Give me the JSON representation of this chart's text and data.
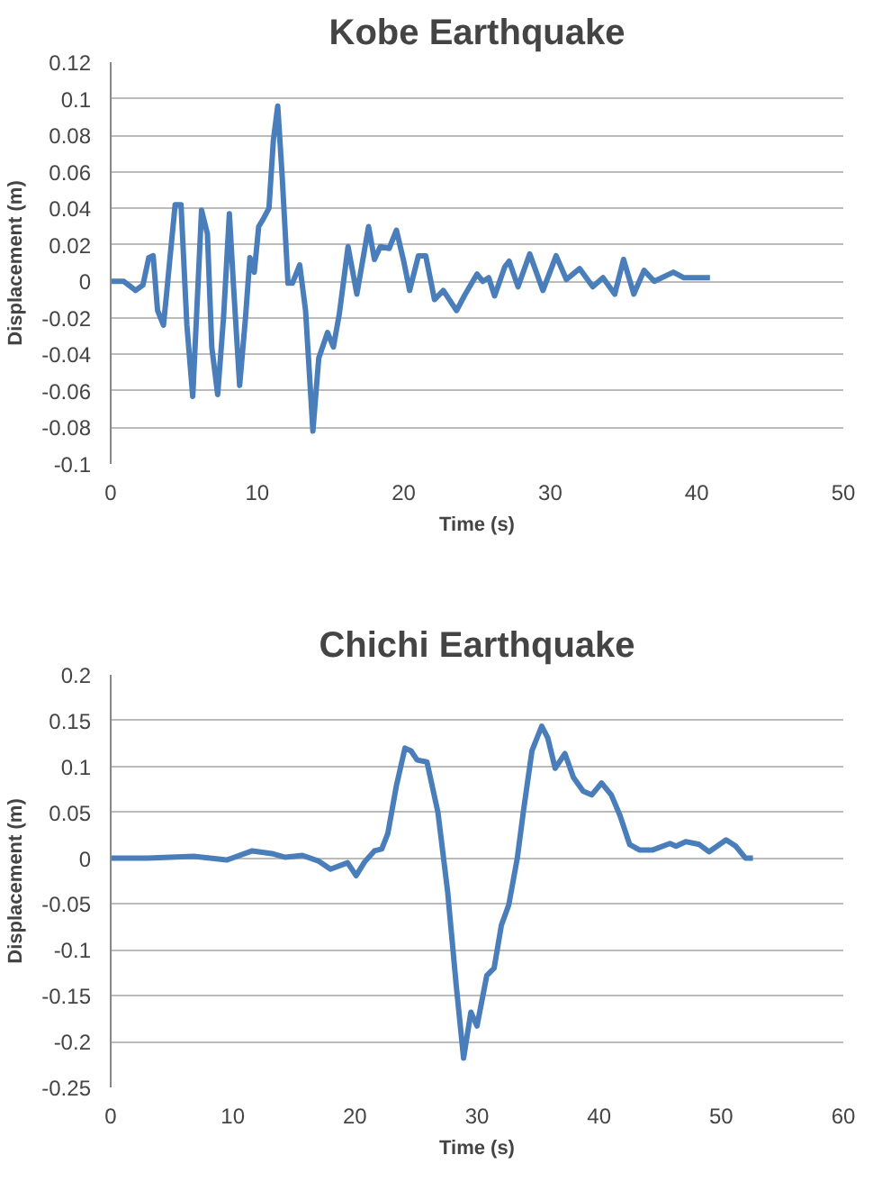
{
  "chart_data": [
    {
      "type": "line",
      "title": "Kobe Earthquake",
      "xlabel": "Time (s)",
      "ylabel": "Displacement (m)",
      "xlim": [
        0,
        50
      ],
      "xticks": [
        0,
        10,
        20,
        30,
        40,
        50
      ],
      "ylim": [
        -0.1,
        0.12
      ],
      "yticks": [
        -0.1,
        -0.08,
        -0.06,
        -0.04,
        -0.02,
        0,
        0.02,
        0.04,
        0.06,
        0.08,
        0.1,
        0.12
      ],
      "grid": "y",
      "marker": "none",
      "line_style": "solid",
      "series": [
        {
          "color": "#4a7ebb",
          "x": [
            0,
            0.9,
            1.7,
            2.2,
            2.6,
            2.9,
            3.2,
            3.6,
            3.8,
            4.0,
            4.4,
            4.8,
            5.2,
            5.6,
            5.9,
            6.2,
            6.6,
            6.9,
            7.3,
            7.7,
            8.1,
            8.4,
            8.8,
            9.2,
            9.5,
            9.8,
            10.1,
            10.4,
            10.8,
            11.1,
            11.4,
            11.7,
            12.1,
            12.4,
            12.9,
            13.3,
            13.8,
            14.2,
            14.8,
            15.2,
            15.6,
            16.2,
            16.8,
            17.6,
            18.0,
            18.4,
            19.0,
            19.5,
            20.0,
            20.4,
            21.0,
            21.5,
            22.1,
            22.7,
            23.6,
            24.2,
            25.0,
            25.4,
            25.8,
            26.2,
            26.9,
            27.2,
            27.8,
            28.6,
            29.5,
            30.4,
            31.1,
            32.0,
            32.9,
            33.6,
            34.4,
            35.0,
            35.7,
            36.4,
            37.1,
            38.4,
            39.1,
            39.6,
            40.9
          ],
          "values": [
            0,
            0,
            -0.005,
            -0.002,
            0.013,
            0.014,
            -0.016,
            -0.024,
            -0.008,
            0.009,
            0.042,
            0.042,
            -0.024,
            -0.063,
            -0.012,
            0.039,
            0.026,
            -0.036,
            -0.062,
            -0.02,
            0.037,
            -0.005,
            -0.057,
            -0.02,
            0.013,
            0.005,
            0.03,
            0.034,
            0.04,
            0.077,
            0.096,
            0.058,
            -0.001,
            -0.001,
            0.009,
            -0.016,
            -0.082,
            -0.042,
            -0.028,
            -0.036,
            -0.018,
            0.019,
            -0.007,
            0.03,
            0.012,
            0.019,
            0.018,
            0.028,
            0.011,
            -0.005,
            0.014,
            0.014,
            -0.01,
            -0.005,
            -0.016,
            -0.007,
            0.004,
            0,
            0.002,
            -0.008,
            0.008,
            0.011,
            -0.003,
            0.015,
            -0.005,
            0.014,
            0.001,
            0.007,
            -0.003,
            0.002,
            -0.007,
            0.012,
            -0.007,
            0.006,
            0,
            0.005,
            0.002,
            0.002,
            0.002
          ]
        }
      ]
    },
    {
      "type": "line",
      "title": "Chichi Earthquake",
      "xlabel": "Time (s)",
      "ylabel": "Displacement (m)",
      "xlim": [
        0,
        60
      ],
      "xticks": [
        0,
        10,
        20,
        30,
        40,
        50,
        60
      ],
      "ylim": [
        -0.25,
        0.2
      ],
      "yticks": [
        -0.25,
        -0.2,
        -0.15,
        -0.1,
        -0.05,
        0,
        0.05,
        0.1,
        0.15,
        0.2
      ],
      "grid": "y",
      "marker": "none",
      "line_style": "solid",
      "series": [
        {
          "color": "#4a7ebb",
          "x": [
            0,
            3.0,
            6.8,
            9.5,
            11.6,
            13.2,
            14.3,
            15.7,
            17.0,
            18.0,
            19.4,
            20.1,
            20.8,
            21.6,
            22.2,
            22.7,
            23.4,
            24.1,
            24.6,
            25.1,
            25.9,
            26.8,
            27.6,
            28.3,
            28.9,
            29.5,
            30.0,
            30.8,
            31.4,
            32.0,
            32.6,
            33.3,
            33.8,
            34.5,
            35.3,
            35.8,
            36.4,
            37.2,
            37.9,
            38.7,
            39.4,
            40.2,
            41.0,
            41.7,
            42.5,
            43.3,
            44.4,
            45.8,
            46.3,
            47.1,
            48.2,
            49.0,
            50.4,
            51.2,
            52.0,
            52.6
          ],
          "values": [
            0,
            0,
            0.002,
            -0.002,
            0.008,
            0.005,
            0.001,
            0.003,
            -0.003,
            -0.012,
            -0.005,
            -0.019,
            -0.004,
            0.008,
            0.01,
            0.027,
            0.079,
            0.12,
            0.117,
            0.107,
            0.105,
            0.05,
            -0.037,
            -0.139,
            -0.218,
            -0.168,
            -0.183,
            -0.128,
            -0.12,
            -0.073,
            -0.051,
            0,
            0.051,
            0.117,
            0.144,
            0.131,
            0.098,
            0.114,
            0.088,
            0.073,
            0.069,
            0.082,
            0.069,
            0.047,
            0.015,
            0.009,
            0.009,
            0.016,
            0.013,
            0.018,
            0.015,
            0.007,
            0.02,
            0.013,
            0,
            0
          ]
        }
      ]
    }
  ]
}
